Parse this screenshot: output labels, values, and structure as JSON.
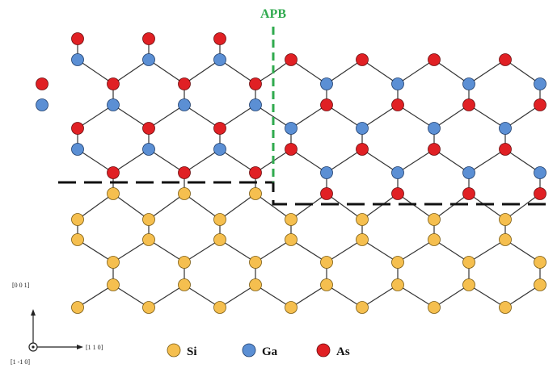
{
  "boundary_label": "APB",
  "axes": {
    "vertical": "[0 0 1]",
    "horizontal": "[1 1 0]",
    "out_of_plane": "[1 -1 0]"
  },
  "legend": [
    {
      "label": "Si",
      "color": "#f5bf4f"
    },
    {
      "label": "Ga",
      "color": "#5b8fd4"
    },
    {
      "label": "As",
      "color": "#e02024"
    }
  ],
  "colors": {
    "Si": "#f5bf4f",
    "Ga": "#5b8fd4",
    "As": "#e02024",
    "apb_line": "#2faa4e",
    "interface_line": "#111111",
    "bond": "#333333",
    "apb_text": "#2faa4e"
  }
}
